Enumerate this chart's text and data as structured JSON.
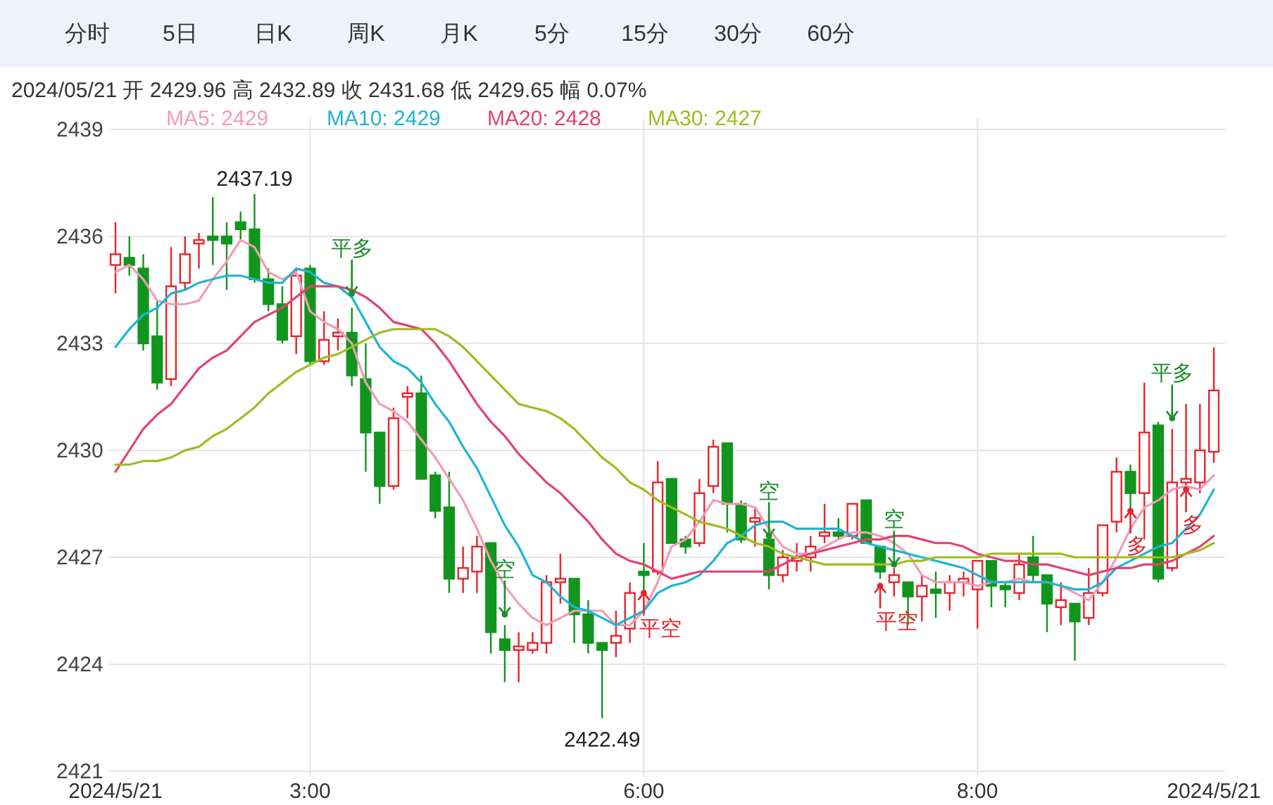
{
  "chart_data": {
    "type": "candlestick",
    "title": "2024/05/21 开 2429.96 高 2432.89 收 2431.68 低 2429.65 幅 0.07%",
    "categories": [
      "2024/5/21",
      null,
      null,
      null,
      null,
      null,
      null,
      null,
      null,
      null,
      null,
      null,
      null,
      null,
      "3:00",
      null,
      null,
      null,
      null,
      null,
      null,
      null,
      null,
      null,
      null,
      null,
      null,
      null,
      null,
      null,
      null,
      null,
      null,
      null,
      null,
      null,
      null,
      null,
      "6:00",
      null,
      null,
      null,
      null,
      null,
      null,
      null,
      null,
      null,
      null,
      null,
      null,
      null,
      null,
      null,
      null,
      null,
      null,
      null,
      null,
      null,
      null,
      null,
      "8:00",
      null,
      null,
      null,
      null,
      null,
      null,
      null,
      null,
      null,
      null,
      null,
      null,
      null,
      null,
      null,
      null,
      "2024/5/21"
    ],
    "ohlc": [
      [
        2435.2,
        2436.4,
        2434.4,
        2435.5
      ],
      [
        2435.4,
        2436.0,
        2434.9,
        2435.2
      ],
      [
        2435.1,
        2435.5,
        2432.8,
        2433.0
      ],
      [
        2433.2,
        2434.2,
        2431.7,
        2431.9
      ],
      [
        2432.0,
        2435.7,
        2431.8,
        2434.6
      ],
      [
        2434.7,
        2436.0,
        2434.5,
        2435.5
      ],
      [
        2435.8,
        2436.1,
        2435.1,
        2435.9
      ],
      [
        2436.0,
        2437.1,
        2435.2,
        2435.9
      ],
      [
        2436.0,
        2436.4,
        2434.5,
        2435.8
      ],
      [
        2436.4,
        2436.7,
        2435.9,
        2436.2
      ],
      [
        2436.2,
        2437.19,
        2434.7,
        2434.8
      ],
      [
        2434.8,
        2435.1,
        2433.9,
        2434.1
      ],
      [
        2434.1,
        2434.6,
        2433.0,
        2433.1
      ],
      [
        2433.2,
        2435.1,
        2432.7,
        2434.9
      ],
      [
        2435.1,
        2435.2,
        2432.4,
        2432.5
      ],
      [
        2432.5,
        2433.9,
        2432.4,
        2433.1
      ],
      [
        2433.2,
        2433.7,
        2432.8,
        2433.3
      ],
      [
        2433.3,
        2434.0,
        2431.8,
        2432.1
      ],
      [
        2432.0,
        2433.0,
        2429.4,
        2430.5
      ],
      [
        2430.5,
        2430.5,
        2428.5,
        2429.0
      ],
      [
        2429.0,
        2431.2,
        2428.9,
        2430.9
      ],
      [
        2431.5,
        2431.8,
        2430.9,
        2431.6
      ],
      [
        2431.6,
        2432.1,
        2429.2,
        2429.2
      ],
      [
        2429.3,
        2429.4,
        2428.1,
        2428.3
      ],
      [
        2428.4,
        2429.4,
        2426.0,
        2426.4
      ],
      [
        2426.4,
        2427.3,
        2426.0,
        2426.7
      ],
      [
        2426.6,
        2427.6,
        2426.0,
        2427.3
      ],
      [
        2427.4,
        2427.4,
        2424.3,
        2424.9
      ],
      [
        2424.7,
        2425.1,
        2423.5,
        2424.4
      ],
      [
        2424.4,
        2424.9,
        2423.5,
        2424.5
      ],
      [
        2424.4,
        2424.9,
        2424.3,
        2424.6
      ],
      [
        2424.6,
        2426.5,
        2424.3,
        2426.3
      ],
      [
        2426.3,
        2427.1,
        2425.7,
        2426.4
      ],
      [
        2426.4,
        2426.4,
        2424.6,
        2425.4
      ],
      [
        2425.4,
        2425.8,
        2424.3,
        2424.6
      ],
      [
        2424.6,
        2424.6,
        2422.49,
        2424.4
      ],
      [
        2424.6,
        2425.5,
        2424.2,
        2424.8
      ],
      [
        2425.0,
        2426.3,
        2424.6,
        2426.0
      ],
      [
        2426.6,
        2427.4,
        2426.0,
        2426.5
      ],
      [
        2426.6,
        2429.7,
        2426.5,
        2429.1
      ],
      [
        2429.2,
        2429.2,
        2427.4,
        2427.4
      ],
      [
        2427.5,
        2427.6,
        2427.1,
        2427.3
      ],
      [
        2427.4,
        2429.2,
        2427.3,
        2428.8
      ],
      [
        2429.0,
        2430.3,
        2428.8,
        2430.1
      ],
      [
        2430.2,
        2430.2,
        2427.7,
        2428.5
      ],
      [
        2428.5,
        2428.6,
        2427.4,
        2427.5
      ],
      [
        2428.0,
        2428.4,
        2427.3,
        2428.1
      ],
      [
        2427.5,
        2428.3,
        2426.1,
        2426.5
      ],
      [
        2426.5,
        2427.2,
        2426.3,
        2427.0
      ],
      [
        2426.9,
        2427.4,
        2426.6,
        2427.0
      ],
      [
        2427.0,
        2427.6,
        2426.6,
        2427.3
      ],
      [
        2427.6,
        2428.5,
        2427.4,
        2427.7
      ],
      [
        2427.7,
        2428.1,
        2427.5,
        2427.6
      ],
      [
        2427.6,
        2428.5,
        2427.5,
        2428.5
      ],
      [
        2428.6,
        2428.6,
        2427.4,
        2427.4
      ],
      [
        2427.3,
        2427.3,
        2426.4,
        2426.6
      ],
      [
        2426.3,
        2426.7,
        2425.9,
        2426.5
      ],
      [
        2426.3,
        2426.3,
        2425.1,
        2425.9
      ],
      [
        2425.9,
        2426.5,
        2425.2,
        2426.2
      ],
      [
        2426.1,
        2426.6,
        2425.3,
        2426.0
      ],
      [
        2426.0,
        2426.5,
        2425.5,
        2426.3
      ],
      [
        2426.3,
        2426.6,
        2425.9,
        2426.4
      ],
      [
        2426.1,
        2426.9,
        2425.0,
        2426.9
      ],
      [
        2426.9,
        2426.9,
        2425.6,
        2426.2
      ],
      [
        2426.2,
        2426.3,
        2425.6,
        2426.1
      ],
      [
        2426.0,
        2427.1,
        2425.8,
        2426.8
      ],
      [
        2427.0,
        2427.6,
        2426.3,
        2426.5
      ],
      [
        2426.5,
        2426.5,
        2424.9,
        2425.7
      ],
      [
        2425.6,
        2426.3,
        2425.1,
        2425.8
      ],
      [
        2425.7,
        2425.7,
        2424.1,
        2425.2
      ],
      [
        2425.3,
        2426.7,
        2425.1,
        2426.0
      ],
      [
        2426.0,
        2427.9,
        2425.9,
        2427.9
      ],
      [
        2428.0,
        2429.8,
        2427.7,
        2429.4
      ],
      [
        2429.4,
        2429.6,
        2428.3,
        2428.8
      ],
      [
        2428.8,
        2431.9,
        2427.5,
        2430.5
      ],
      [
        2430.7,
        2430.8,
        2426.3,
        2426.4
      ],
      [
        2426.7,
        2430.6,
        2426.6,
        2429.1
      ],
      [
        2429.1,
        2431.3,
        2429.0,
        2429.2
      ],
      [
        2429.1,
        2431.3,
        2428.8,
        2430.0
      ],
      [
        2429.96,
        2432.89,
        2429.65,
        2431.68
      ]
    ],
    "series": [
      {
        "type": "line",
        "name": "MA5: 2429",
        "color": "#f29cb6",
        "values": [
          2435.0,
          2435.2,
          2434.8,
          2434.2,
          2434.1,
          2434.1,
          2434.2,
          2434.8,
          2435.3,
          2435.9,
          2435.7,
          2435.0,
          2434.8,
          2435.0,
          2433.9,
          2433.6,
          2433.4,
          2433.0,
          2431.9,
          2431.3,
          2431.1,
          2430.8,
          2430.3,
          2429.8,
          2429.2,
          2428.6,
          2427.8,
          2426.9,
          2426.2,
          2425.7,
          2425.3,
          2425.1,
          2425.3,
          2425.5,
          2425.5,
          2425.5,
          2425.1,
          2425.1,
          2425.5,
          2426.3,
          2427.3,
          2427.5,
          2428.0,
          2428.6,
          2428.5,
          2428.5,
          2428.4,
          2427.8,
          2427.3,
          2427.1,
          2427.1,
          2427.3,
          2427.5,
          2427.7,
          2427.7,
          2427.6,
          2427.4,
          2427.1,
          2426.5,
          2426.3,
          2426.3,
          2426.3,
          2426.2,
          2426.3,
          2426.3,
          2426.4,
          2426.3,
          2426.3,
          2426.2,
          2426.0,
          2425.8,
          2426.3,
          2427.0,
          2427.8,
          2428.4,
          2428.6,
          2428.9,
          2429.0,
          2428.9,
          2429.3
        ]
      },
      {
        "type": "line",
        "name": "MA10: 2429",
        "color": "#1fb5d3",
        "values": [
          2432.9,
          2433.4,
          2433.8,
          2434.0,
          2434.4,
          2434.5,
          2434.7,
          2434.8,
          2434.9,
          2434.9,
          2434.8,
          2434.7,
          2434.7,
          2435.1,
          2435.0,
          2434.7,
          2434.6,
          2434.3,
          2433.6,
          2432.9,
          2432.5,
          2432.3,
          2431.9,
          2431.3,
          2430.8,
          2430.1,
          2429.5,
          2428.7,
          2427.9,
          2427.3,
          2426.5,
          2426.3,
          2425.9,
          2425.6,
          2425.5,
          2425.3,
          2425.1,
          2425.3,
          2425.5,
          2426.0,
          2426.2,
          2426.3,
          2426.5,
          2426.9,
          2427.4,
          2427.6,
          2427.9,
          2428.0,
          2428.0,
          2427.8,
          2427.8,
          2427.8,
          2427.8,
          2427.6,
          2427.4,
          2427.3,
          2427.2,
          2427.1,
          2427.0,
          2426.9,
          2426.8,
          2426.7,
          2426.5,
          2426.3,
          2426.3,
          2426.3,
          2426.3,
          2426.3,
          2426.2,
          2426.1,
          2426.1,
          2426.3,
          2426.7,
          2426.9,
          2427.1,
          2427.3,
          2427.4,
          2427.8,
          2428.2,
          2428.9
        ]
      },
      {
        "type": "line",
        "name": "MA20: 2428",
        "color": "#e2436f",
        "values": [
          2429.4,
          2430.0,
          2430.6,
          2431.0,
          2431.3,
          2431.8,
          2432.3,
          2432.6,
          2432.8,
          2433.2,
          2433.6,
          2433.8,
          2434.0,
          2434.3,
          2434.6,
          2434.6,
          2434.6,
          2434.5,
          2434.3,
          2434.0,
          2433.6,
          2433.5,
          2433.4,
          2433.0,
          2432.5,
          2431.9,
          2431.3,
          2430.8,
          2430.4,
          2429.9,
          2429.5,
          2429.1,
          2428.8,
          2428.4,
          2428.0,
          2427.5,
          2427.1,
          2426.9,
          2426.8,
          2426.6,
          2426.4,
          2426.5,
          2426.6,
          2426.6,
          2426.6,
          2426.6,
          2426.6,
          2426.6,
          2426.8,
          2427.0,
          2427.1,
          2427.2,
          2427.3,
          2427.4,
          2427.5,
          2427.5,
          2427.6,
          2427.6,
          2427.5,
          2427.4,
          2427.4,
          2427.3,
          2427.1,
          2427.0,
          2426.9,
          2426.9,
          2426.8,
          2426.8,
          2426.7,
          2426.6,
          2426.5,
          2426.6,
          2426.7,
          2426.7,
          2426.8,
          2426.8,
          2426.9,
          2427.1,
          2427.3,
          2427.6
        ]
      },
      {
        "type": "line",
        "name": "MA30: 2427",
        "color": "#9dbd1f",
        "values": [
          2429.6,
          2429.6,
          2429.7,
          2429.7,
          2429.8,
          2430.0,
          2430.1,
          2430.4,
          2430.6,
          2430.9,
          2431.2,
          2431.6,
          2431.9,
          2432.2,
          2432.4,
          2432.6,
          2432.7,
          2432.9,
          2433.1,
          2433.3,
          2433.4,
          2433.4,
          2433.4,
          2433.4,
          2433.2,
          2432.9,
          2432.5,
          2432.1,
          2431.7,
          2431.3,
          2431.2,
          2431.1,
          2430.9,
          2430.6,
          2430.2,
          2429.8,
          2429.5,
          2429.1,
          2428.9,
          2428.6,
          2428.4,
          2428.2,
          2428.0,
          2427.9,
          2427.8,
          2427.6,
          2427.4,
          2427.3,
          2427.1,
          2427.0,
          2426.9,
          2426.8,
          2426.8,
          2426.8,
          2426.8,
          2426.8,
          2426.8,
          2426.9,
          2426.9,
          2427.0,
          2427.0,
          2427.0,
          2427.0,
          2427.1,
          2427.1,
          2427.1,
          2427.1,
          2427.1,
          2427.1,
          2427.0,
          2427.0,
          2427.0,
          2427.0,
          2427.0,
          2427.0,
          2427.0,
          2427.0,
          2427.1,
          2427.2,
          2427.4
        ]
      },
      {
        "type": "scatter",
        "values": [
          null,
          null,
          null,
          null,
          null,
          null,
          null,
          null,
          null,
          null,
          null,
          null,
          null,
          null,
          null,
          null,
          null,
          2434.4,
          null,
          null,
          null,
          null,
          null,
          null,
          null,
          null,
          null,
          null,
          2425.4,
          null,
          null,
          null,
          null,
          null,
          null,
          null,
          null,
          null,
          2426.0,
          null,
          null,
          null,
          null,
          null,
          null,
          null,
          null,
          2427.6,
          null,
          null,
          null,
          null,
          null,
          null,
          null,
          2426.2,
          2426.8,
          null,
          null,
          null,
          null,
          null,
          null,
          null,
          null,
          null,
          null,
          null,
          null,
          null,
          null,
          null,
          null,
          2428.3,
          null,
          null,
          2430.9,
          2428.9,
          null,
          null
        ],
        "value_labels": [
          null,
          null,
          null,
          null,
          null,
          null,
          null,
          null,
          null,
          null,
          null,
          null,
          null,
          null,
          null,
          null,
          null,
          "平多",
          null,
          null,
          null,
          null,
          null,
          null,
          null,
          null,
          null,
          null,
          "空",
          null,
          null,
          null,
          null,
          null,
          null,
          null,
          null,
          null,
          "平空",
          null,
          null,
          null,
          null,
          null,
          null,
          null,
          null,
          "空",
          null,
          null,
          null,
          null,
          null,
          null,
          null,
          "平空",
          "空",
          null,
          null,
          null,
          null,
          null,
          null,
          null,
          null,
          null,
          null,
          null,
          null,
          null,
          null,
          null,
          null,
          "多",
          null,
          null,
          "平多",
          "多",
          null,
          null
        ],
        "colors": [
          null,
          null,
          null,
          null,
          null,
          null,
          null,
          null,
          null,
          null,
          null,
          null,
          null,
          null,
          null,
          null,
          null,
          "#1a8f2a",
          null,
          null,
          null,
          null,
          null,
          null,
          null,
          null,
          null,
          null,
          "#1a8f2a",
          null,
          null,
          null,
          null,
          null,
          null,
          null,
          null,
          null,
          "#e8242c",
          null,
          null,
          null,
          null,
          null,
          null,
          null,
          null,
          "#1a8f2a",
          null,
          null,
          null,
          null,
          null,
          null,
          null,
          "#e8242c",
          "#1a8f2a",
          null,
          null,
          null,
          null,
          null,
          null,
          null,
          null,
          null,
          null,
          null,
          null,
          null,
          null,
          null,
          null,
          "#e8242c",
          null,
          null,
          "#1a8f2a",
          "#e8242c",
          null,
          null
        ]
      }
    ],
    "ylim": [
      2421,
      2439
    ],
    "yticks": [
      2421,
      2424,
      2427,
      2430,
      2433,
      2436,
      2439
    ],
    "grid": true,
    "legend": "top left",
    "annotations": [
      "分时",
      "5日",
      "日K",
      "周K",
      "月K",
      "5分",
      "15分",
      "30分",
      "60分",
      {
        "text": "2437.19",
        "y": 2437.19
      },
      {
        "text": "2422.49",
        "y": 2422.49
      }
    ]
  }
}
